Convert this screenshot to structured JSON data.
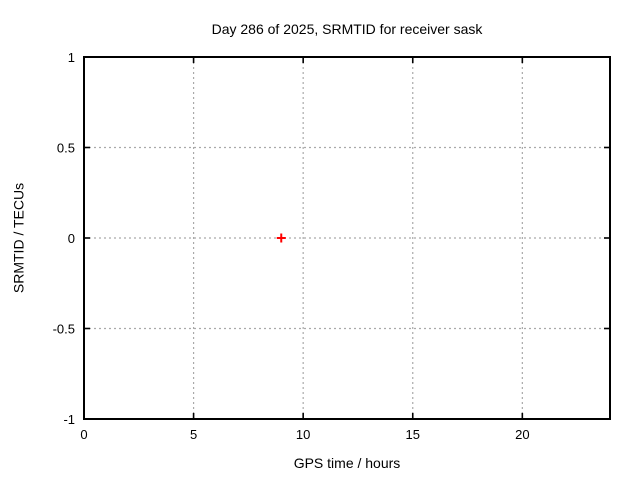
{
  "chart_data": {
    "type": "scatter",
    "title": "Day 286 of 2025, SRMTID for receiver sask",
    "xlabel": "GPS time / hours",
    "ylabel": "SRMTID / TECUs",
    "xlim": [
      0,
      24
    ],
    "ylim": [
      -1,
      1
    ],
    "xticks": [
      0,
      5,
      10,
      15,
      20
    ],
    "yticks": [
      -1,
      -0.5,
      0,
      0.5,
      1
    ],
    "grid": true,
    "legend": "none",
    "series": [
      {
        "name": "SRMTID",
        "marker": "plus",
        "color": "#ff0000",
        "points": [
          {
            "x": 9.0,
            "y": 0.0
          }
        ]
      }
    ],
    "colors": {
      "background": "#ffffff",
      "axis": "#000000",
      "text": "#000000",
      "grid": "#a9a9a9"
    }
  }
}
